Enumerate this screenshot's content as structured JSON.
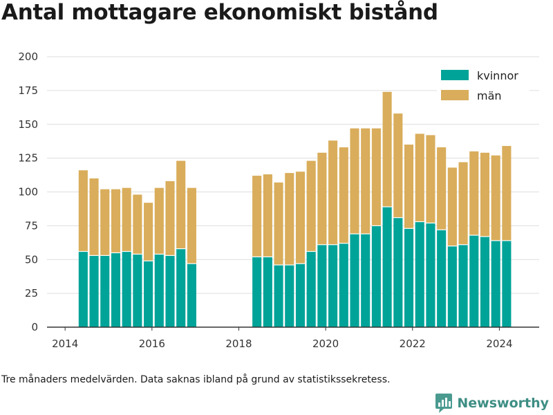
{
  "title": "Antal mottagare ekonomiskt bistånd",
  "note": "Tre månaders medelvärden. Data saknas ibland på grund av statistikssekretess.",
  "brand": {
    "name": "Newsworthy"
  },
  "colors": {
    "kvinnor": "#00a398",
    "man": "#d9ad5b",
    "grid": "#dddddd",
    "axis": "#333333",
    "brand": "#3e8e84"
  },
  "icons": {
    "brand_logo": "chart-logo-icon"
  },
  "chart_data": {
    "type": "bar",
    "stacked": true,
    "x_axis": {
      "type": "date",
      "range": [
        "2013-08",
        "2024-12"
      ],
      "ticks": [
        "2014",
        "2016",
        "2018",
        "2020",
        "2022",
        "2024"
      ]
    },
    "y_axis": {
      "range": [
        0,
        200
      ],
      "ticks": [
        0,
        25,
        50,
        75,
        100,
        125,
        150,
        175,
        200
      ]
    },
    "grid": "horizontal",
    "legend_position": "top-right",
    "x": [
      "2014-06",
      "2014-09",
      "2014-12",
      "2015-03",
      "2015-06",
      "2015-09",
      "2015-12",
      "2016-03",
      "2016-06",
      "2016-09",
      "2016-12",
      "2018-06",
      "2018-09",
      "2018-12",
      "2019-03",
      "2019-06",
      "2019-09",
      "2019-12",
      "2020-03",
      "2020-06",
      "2020-09",
      "2020-12",
      "2021-03",
      "2021-06",
      "2021-09",
      "2021-12",
      "2022-03",
      "2022-06",
      "2022-09",
      "2022-12",
      "2023-03",
      "2023-06",
      "2023-09",
      "2023-12",
      "2024-03"
    ],
    "series": [
      {
        "name": "kvinnor",
        "values": [
          56,
          53,
          53,
          55,
          56,
          54,
          49,
          54,
          53,
          58,
          47,
          52,
          52,
          46,
          46,
          47,
          56,
          61,
          61,
          62,
          69,
          69,
          75,
          89,
          81,
          73,
          78,
          77,
          72,
          60,
          61,
          68,
          67,
          64,
          64
        ]
      },
      {
        "name": "män",
        "values": [
          60,
          57,
          49,
          47,
          47,
          44,
          43,
          49,
          55,
          65,
          56,
          60,
          61,
          61,
          68,
          68,
          67,
          68,
          77,
          71,
          78,
          78,
          72,
          85,
          77,
          62,
          65,
          65,
          61,
          58,
          61,
          62,
          62,
          63,
          70
        ]
      }
    ]
  }
}
